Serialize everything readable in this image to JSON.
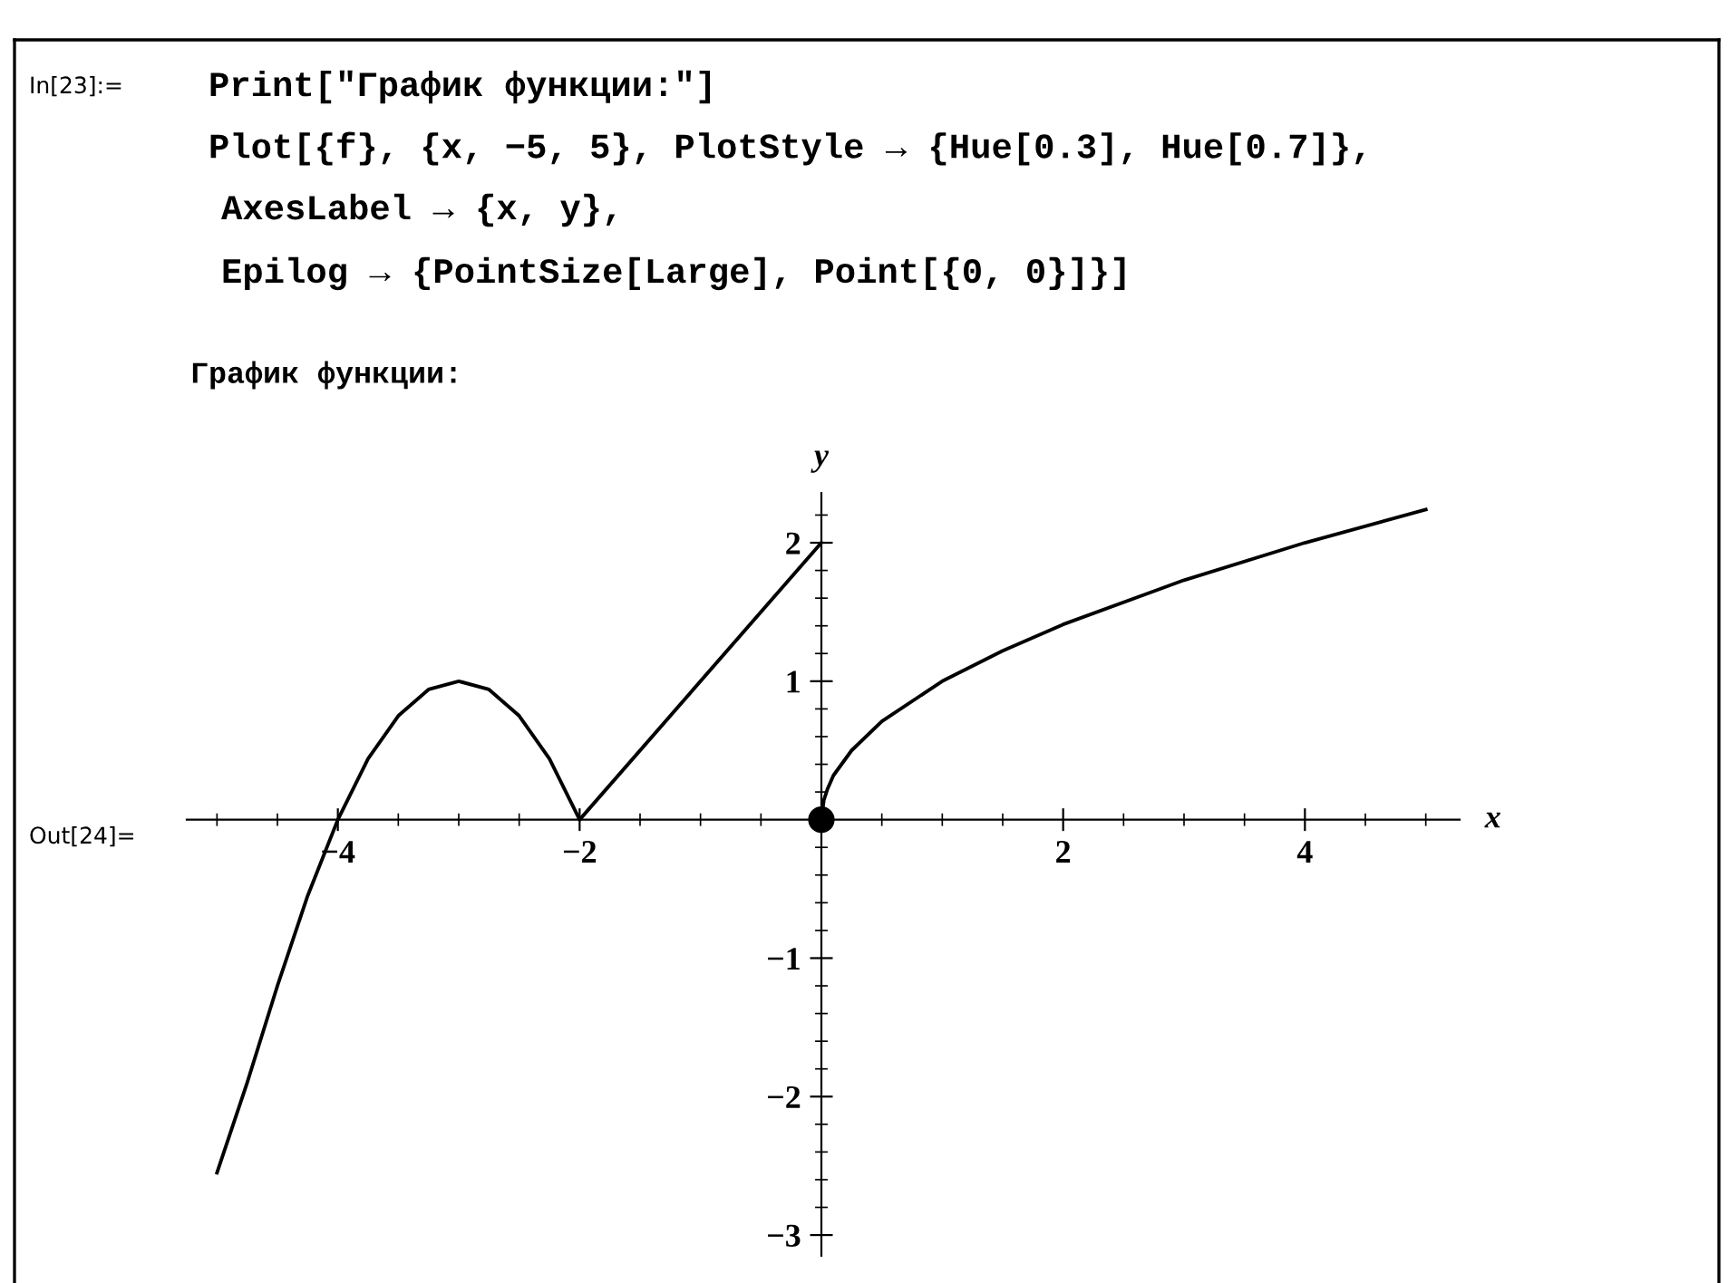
{
  "chart_data": {
    "type": "line",
    "xlabel": "x",
    "ylabel": "y",
    "annotations": [
      "In[23]:=",
      "Print[\"График функции:\"]",
      "Plot[{f}, {x, −5, 5}, PlotStyle → {Hue[0.3], Hue[0.7]},",
      "AxesLabel → {x, y},",
      "Epilog → {PointSize[Large], Point[{0, 0}]}]",
      "График функции:",
      "Out[24]="
    ],
    "xlim": [
      -5.25,
      5.28
    ],
    "ylim": [
      -3.15,
      2.36
    ],
    "xticks": [
      {
        "value": -5,
        "label": null
      },
      {
        "value": -4.5,
        "label": null
      },
      {
        "value": -4,
        "label": "−4"
      },
      {
        "value": -3.5,
        "label": null
      },
      {
        "value": -3,
        "label": null
      },
      {
        "value": -2.5,
        "label": null
      },
      {
        "value": -2,
        "label": "−2"
      },
      {
        "value": -1.5,
        "label": null
      },
      {
        "value": -1,
        "label": null
      },
      {
        "value": -0.5,
        "label": null
      },
      {
        "value": 0.5,
        "label": null
      },
      {
        "value": 1,
        "label": null
      },
      {
        "value": 1.5,
        "label": null
      },
      {
        "value": 2,
        "label": "2"
      },
      {
        "value": 2.5,
        "label": null
      },
      {
        "value": 3,
        "label": null
      },
      {
        "value": 3.5,
        "label": null
      },
      {
        "value": 4,
        "label": "4"
      },
      {
        "value": 4.5,
        "label": null
      },
      {
        "value": 5,
        "label": null
      }
    ],
    "yticks": [
      {
        "value": -3,
        "label": "−3"
      },
      {
        "value": -2.8,
        "label": null
      },
      {
        "value": -2.6,
        "label": null
      },
      {
        "value": -2.4,
        "label": null
      },
      {
        "value": -2.2,
        "label": null
      },
      {
        "value": -2,
        "label": "−2"
      },
      {
        "value": -1.8,
        "label": null
      },
      {
        "value": -1.6,
        "label": null
      },
      {
        "value": -1.4,
        "label": null
      },
      {
        "value": -1.2,
        "label": null
      },
      {
        "value": -1,
        "label": "−1"
      },
      {
        "value": -0.8,
        "label": null
      },
      {
        "value": -0.6,
        "label": null
      },
      {
        "value": -0.4,
        "label": null
      },
      {
        "value": -0.2,
        "label": null
      },
      {
        "value": 0.2,
        "label": null
      },
      {
        "value": 0.4,
        "label": null
      },
      {
        "value": 0.6,
        "label": null
      },
      {
        "value": 0.8,
        "label": null
      },
      {
        "value": 1,
        "label": "1"
      },
      {
        "value": 1.2,
        "label": null
      },
      {
        "value": 1.4,
        "label": null
      },
      {
        "value": 1.6,
        "label": null
      },
      {
        "value": 1.8,
        "label": null
      },
      {
        "value": 2,
        "label": "2"
      },
      {
        "value": 2.2,
        "label": null
      }
    ],
    "grid": false,
    "legend": false,
    "series": [
      {
        "color": "#000000",
        "x": [
          -5,
          -4.75,
          -4.5,
          -4.25,
          -4,
          -3.75,
          -3.5,
          -3.25,
          -3,
          -2.75,
          -2.5,
          -2.25,
          -2,
          0
        ],
        "values": [
          -2.55,
          -1.9,
          -1.2,
          -0.55,
          0,
          0.44,
          0.75,
          0.94,
          1,
          0.94,
          0.75,
          0.44,
          0,
          2
        ]
      },
      {
        "color": "#000000",
        "x": [
          0,
          0.02,
          0.05,
          0.1,
          0.25,
          0.5,
          1,
          1.5,
          2,
          3,
          4,
          5
        ],
        "values": [
          0,
          0.14,
          0.22,
          0.32,
          0.5,
          0.71,
          1,
          1.22,
          1.41,
          1.73,
          2,
          2.24
        ]
      },
      {
        "type": "scatter",
        "color": "#000000",
        "marker": "circle",
        "x": [
          0
        ],
        "values": [
          0
        ]
      }
    ]
  }
}
